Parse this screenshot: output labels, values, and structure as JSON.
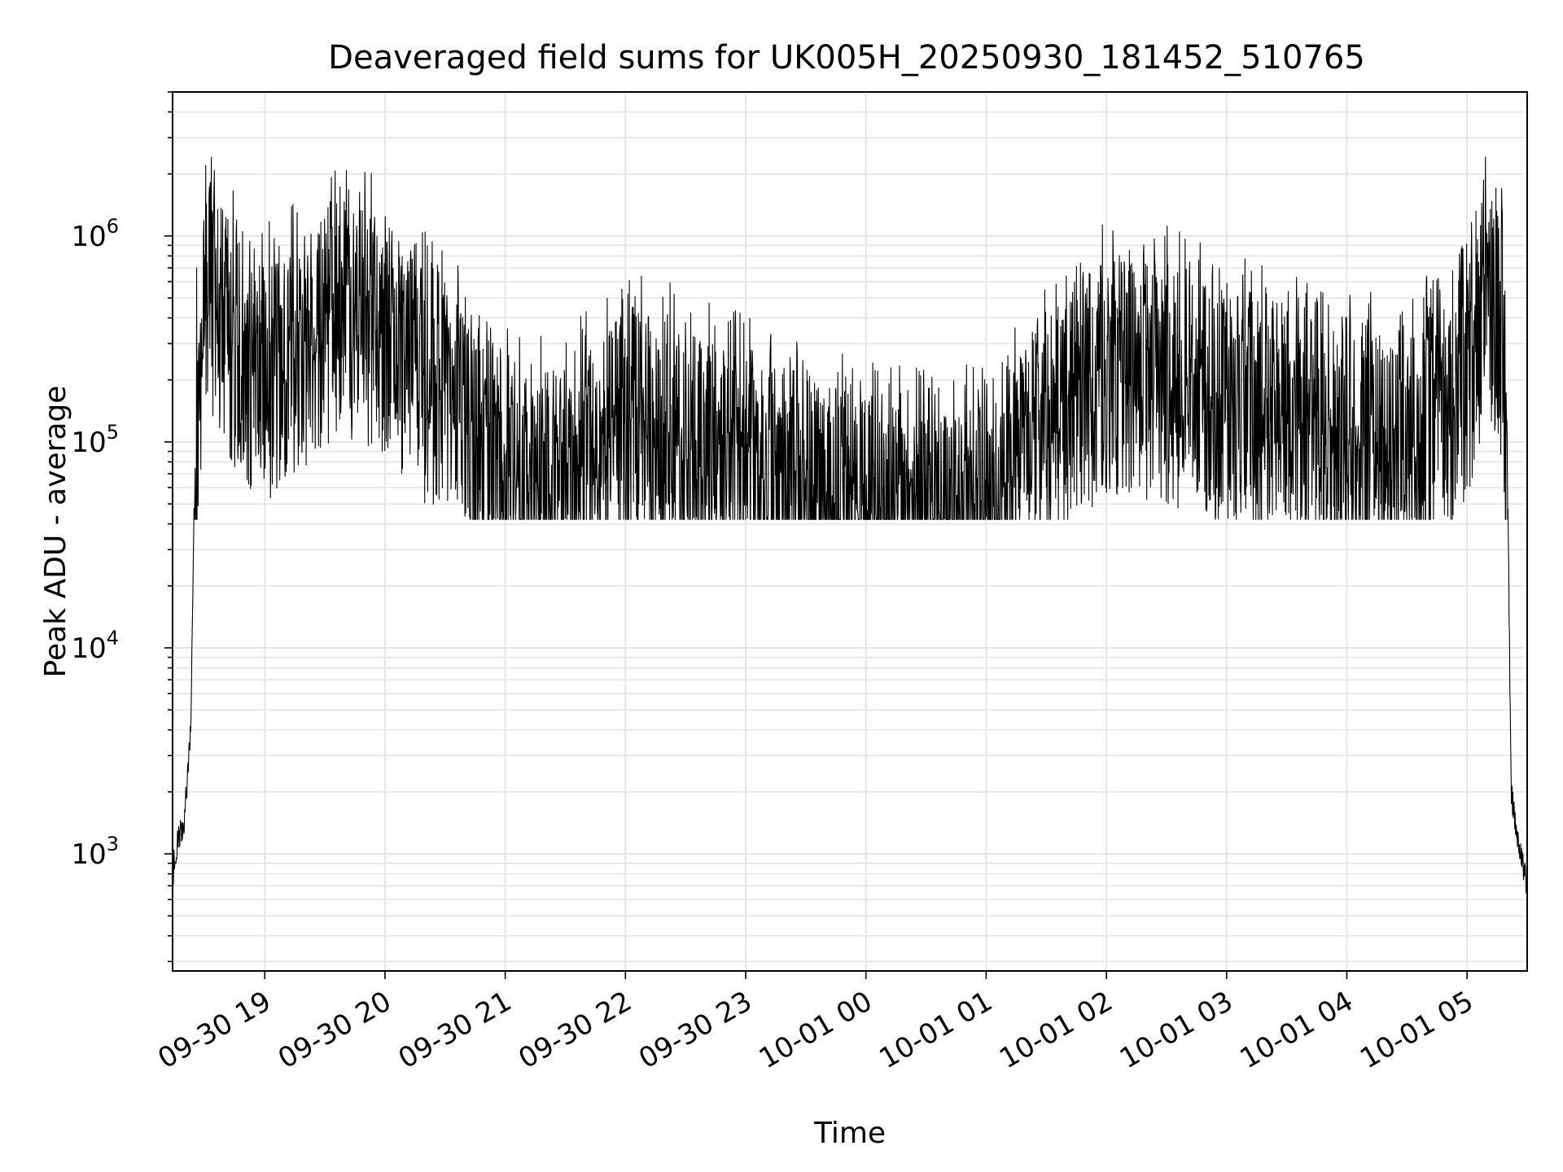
{
  "chart_data": {
    "type": "line",
    "title": "Deaveraged field sums for UK005H_20250930_181452_510765",
    "xlabel": "Time",
    "ylabel": "Peak ADU - average",
    "x_range": [
      "2025-09-30 18:14",
      "2025-10-01 05:30"
    ],
    "x_ticks": [
      "09-30 19",
      "09-30 20",
      "09-30 21",
      "09-30 22",
      "09-30 23",
      "10-01 00",
      "10-01 01",
      "10-01 02",
      "10-01 03",
      "10-01 04",
      "10-01 05"
    ],
    "y_scale": "log",
    "y_range": [
      270,
      5000000
    ],
    "y_ticks": [
      {
        "base": "10",
        "exp": "3"
      },
      {
        "base": "10",
        "exp": "4"
      },
      {
        "base": "10",
        "exp": "5"
      },
      {
        "base": "10",
        "exp": "6"
      }
    ],
    "grid": true,
    "line_color": "#000000",
    "grid_color": "#e5e5e5",
    "series": [
      {
        "x": [
          "2025-09-30 18:14",
          "2025-09-30 18:15",
          "2025-09-30 18:20",
          "2025-09-30 18:23",
          "2025-09-30 18:26",
          "2025-09-30 18:30",
          "2025-09-30 18:35",
          "2025-09-30 18:40",
          "2025-09-30 18:50",
          "2025-09-30 19:00",
          "2025-09-30 19:20",
          "2025-09-30 19:40",
          "2025-09-30 20:00",
          "2025-09-30 20:30",
          "2025-09-30 21:00",
          "2025-09-30 21:30",
          "2025-09-30 22:00",
          "2025-09-30 22:30",
          "2025-09-30 23:00",
          "2025-09-30 23:30",
          "2025-10-01 00:00",
          "2025-10-01 00:30",
          "2025-10-01 01:00",
          "2025-10-01 01:30",
          "2025-10-01 02:00",
          "2025-10-01 02:30",
          "2025-10-01 03:00",
          "2025-10-01 03:30",
          "2025-10-01 04:00",
          "2025-10-01 04:30",
          "2025-10-01 05:00",
          "2025-10-01 05:10",
          "2025-10-01 05:18",
          "2025-10-01 05:20",
          "2025-10-01 05:22",
          "2025-10-01 05:25",
          "2025-10-01 05:30"
        ],
        "y": [
          700,
          1000,
          1500,
          4000,
          300000,
          800000,
          1000000,
          700000,
          500000,
          400000,
          600000,
          800000,
          700000,
          300000,
          150000,
          120000,
          250000,
          200000,
          150000,
          120000,
          90000,
          80000,
          90000,
          200000,
          450000,
          400000,
          300000,
          250000,
          200000,
          180000,
          400000,
          1100000,
          600000,
          100000,
          2000,
          1200,
          700
        ]
      }
    ]
  }
}
